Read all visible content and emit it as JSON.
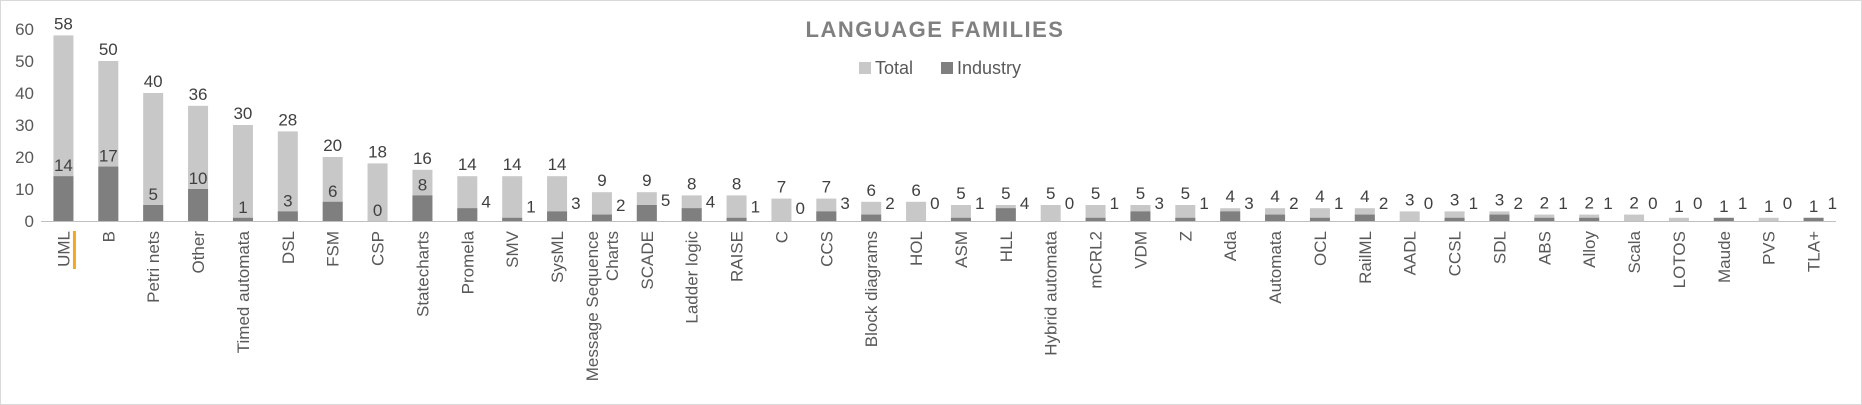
{
  "chart_data": {
    "type": "bar",
    "title": "LANGUAGE FAMILIES",
    "xlabel": "",
    "ylabel": "",
    "ylim": [
      0,
      60
    ],
    "yticks": [
      0,
      10,
      20,
      30,
      40,
      50,
      60
    ],
    "legend": "top-center",
    "grid": false,
    "categories": [
      "UML",
      "B",
      "Petri nets",
      "Other",
      "Timed automata",
      "DSL",
      "FSM",
      "CSP",
      "Statecharts",
      "Promela",
      "SMV",
      "SysML",
      "Message Sequence Charts",
      "SCADE",
      "Ladder logic",
      "RAISE",
      "C",
      "CCS",
      "Block diagrams",
      "HOL",
      "ASM",
      "HLL",
      "Hybrid automata",
      "mCRL2",
      "VDM",
      "Z",
      "Ada",
      "Automata",
      "OCL",
      "RailML",
      "AADL",
      "CCSL",
      "SDL",
      "ABS",
      "Alloy",
      "Scala",
      "LOTOS",
      "Maude",
      "PVS",
      "TLA+"
    ],
    "series": [
      {
        "name": "Total",
        "color": "#c8c8c8",
        "values": [
          58,
          50,
          40,
          36,
          30,
          28,
          20,
          18,
          16,
          14,
          14,
          14,
          9,
          9,
          8,
          8,
          7,
          7,
          6,
          6,
          5,
          5,
          5,
          5,
          5,
          5,
          4,
          4,
          4,
          4,
          3,
          3,
          3,
          2,
          2,
          2,
          1,
          1,
          1,
          1
        ]
      },
      {
        "name": "Industry",
        "color": "#7f7f7f",
        "values": [
          14,
          17,
          5,
          10,
          1,
          3,
          6,
          0,
          8,
          4,
          1,
          3,
          2,
          5,
          4,
          1,
          0,
          3,
          2,
          0,
          1,
          4,
          0,
          1,
          3,
          1,
          3,
          2,
          1,
          2,
          0,
          1,
          2,
          1,
          1,
          0,
          0,
          1,
          0,
          1
        ]
      }
    ],
    "highlight": {
      "category": "UML",
      "color": "#f5a623"
    }
  }
}
